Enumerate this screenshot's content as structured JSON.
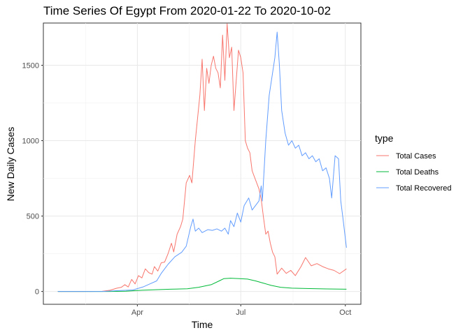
{
  "chart_data": {
    "type": "line",
    "title": "Time Series Of Egypt From 2020-01-22 To 2020-10-02",
    "xlabel": "Time",
    "ylabel": "New Daily Cases",
    "x_range": [
      "2020-01-22",
      "2020-10-02"
    ],
    "ylim": [
      -85,
      1780
    ],
    "x_ticks": [
      {
        "date": "2020-04-01",
        "label": "Apr"
      },
      {
        "date": "2020-07-01",
        "label": "Jul"
      },
      {
        "date": "2020-10-01",
        "label": "Oct"
      }
    ],
    "y_ticks": [
      0,
      500,
      1000,
      1500
    ],
    "grid": true,
    "legend": {
      "title": "type",
      "position": "right"
    },
    "series": [
      {
        "name": "Total Cases",
        "color": "#F8766D",
        "points": [
          [
            "2020-01-22",
            0
          ],
          [
            "2020-02-13",
            0
          ],
          [
            "2020-03-01",
            1
          ],
          [
            "2020-03-08",
            8
          ],
          [
            "2020-03-14",
            22
          ],
          [
            "2020-03-18",
            28
          ],
          [
            "2020-03-21",
            45
          ],
          [
            "2020-03-24",
            30
          ],
          [
            "2020-03-27",
            80
          ],
          [
            "2020-03-30",
            50
          ],
          [
            "2020-04-02",
            105
          ],
          [
            "2020-04-05",
            90
          ],
          [
            "2020-04-08",
            150
          ],
          [
            "2020-04-11",
            125
          ],
          [
            "2020-04-14",
            115
          ],
          [
            "2020-04-16",
            165
          ],
          [
            "2020-04-19",
            135
          ],
          [
            "2020-04-22",
            190
          ],
          [
            "2020-04-25",
            195
          ],
          [
            "2020-04-28",
            250
          ],
          [
            "2020-05-01",
            320
          ],
          [
            "2020-05-03",
            262
          ],
          [
            "2020-05-06",
            380
          ],
          [
            "2020-05-09",
            430
          ],
          [
            "2020-05-11",
            480
          ],
          [
            "2020-05-14",
            720
          ],
          [
            "2020-05-17",
            770
          ],
          [
            "2020-05-19",
            720
          ],
          [
            "2020-05-22",
            1000
          ],
          [
            "2020-05-24",
            1150
          ],
          [
            "2020-05-26",
            1300
          ],
          [
            "2020-05-28",
            1540
          ],
          [
            "2020-05-30",
            1200
          ],
          [
            "2020-06-01",
            1480
          ],
          [
            "2020-06-03",
            1380
          ],
          [
            "2020-06-05",
            1500
          ],
          [
            "2020-06-07",
            1560
          ],
          [
            "2020-06-09",
            1480
          ],
          [
            "2020-06-11",
            1450
          ],
          [
            "2020-06-13",
            1350
          ],
          [
            "2020-06-15",
            1700
          ],
          [
            "2020-06-17",
            1400
          ],
          [
            "2020-06-19",
            1775
          ],
          [
            "2020-06-21",
            1550
          ],
          [
            "2020-06-23",
            1620
          ],
          [
            "2020-06-25",
            1200
          ],
          [
            "2020-06-27",
            1400
          ],
          [
            "2020-06-29",
            1600
          ],
          [
            "2020-07-01",
            1550
          ],
          [
            "2020-07-03",
            1450
          ],
          [
            "2020-07-05",
            1000
          ],
          [
            "2020-07-07",
            950
          ],
          [
            "2020-07-09",
            920
          ],
          [
            "2020-07-11",
            800
          ],
          [
            "2020-07-13",
            760
          ],
          [
            "2020-07-15",
            720
          ],
          [
            "2020-07-17",
            680
          ],
          [
            "2020-07-19",
            610
          ],
          [
            "2020-07-21",
            490
          ],
          [
            "2020-07-23",
            380
          ],
          [
            "2020-07-25",
            400
          ],
          [
            "2020-07-27",
            320
          ],
          [
            "2020-07-29",
            260
          ],
          [
            "2020-07-31",
            230
          ],
          [
            "2020-08-02",
            115
          ],
          [
            "2020-08-06",
            155
          ],
          [
            "2020-08-10",
            120
          ],
          [
            "2020-08-14",
            140
          ],
          [
            "2020-08-18",
            105
          ],
          [
            "2020-08-23",
            165
          ],
          [
            "2020-08-27",
            225
          ],
          [
            "2020-09-01",
            170
          ],
          [
            "2020-09-06",
            185
          ],
          [
            "2020-09-11",
            165
          ],
          [
            "2020-09-16",
            150
          ],
          [
            "2020-09-21",
            140
          ],
          [
            "2020-09-26",
            118
          ],
          [
            "2020-10-02",
            150
          ]
        ]
      },
      {
        "name": "Total Deaths",
        "color": "#00BA38",
        "points": [
          [
            "2020-01-22",
            0
          ],
          [
            "2020-03-08",
            0
          ],
          [
            "2020-03-22",
            2
          ],
          [
            "2020-04-05",
            8
          ],
          [
            "2020-04-19",
            12
          ],
          [
            "2020-04-30",
            15
          ],
          [
            "2020-05-15",
            18
          ],
          [
            "2020-05-25",
            28
          ],
          [
            "2020-06-05",
            45
          ],
          [
            "2020-06-12",
            70
          ],
          [
            "2020-06-16",
            85
          ],
          [
            "2020-06-22",
            88
          ],
          [
            "2020-06-30",
            85
          ],
          [
            "2020-07-07",
            82
          ],
          [
            "2020-07-14",
            70
          ],
          [
            "2020-07-21",
            55
          ],
          [
            "2020-07-28",
            40
          ],
          [
            "2020-08-05",
            28
          ],
          [
            "2020-08-15",
            22
          ],
          [
            "2020-08-31",
            19
          ],
          [
            "2020-09-15",
            17
          ],
          [
            "2020-10-02",
            15
          ]
        ]
      },
      {
        "name": "Total Recovered",
        "color": "#619CFF",
        "points": [
          [
            "2020-01-22",
            0
          ],
          [
            "2020-03-01",
            0
          ],
          [
            "2020-03-14",
            5
          ],
          [
            "2020-03-28",
            10
          ],
          [
            "2020-04-06",
            30
          ],
          [
            "2020-04-12",
            50
          ],
          [
            "2020-04-18",
            70
          ],
          [
            "2020-04-22",
            120
          ],
          [
            "2020-04-28",
            180
          ],
          [
            "2020-05-04",
            230
          ],
          [
            "2020-05-10",
            260
          ],
          [
            "2020-05-14",
            300
          ],
          [
            "2020-05-18",
            430
          ],
          [
            "2020-05-20",
            480
          ],
          [
            "2020-05-22",
            400
          ],
          [
            "2020-05-25",
            420
          ],
          [
            "2020-05-28",
            390
          ],
          [
            "2020-06-02",
            410
          ],
          [
            "2020-06-06",
            405
          ],
          [
            "2020-06-10",
            415
          ],
          [
            "2020-06-14",
            400
          ],
          [
            "2020-06-17",
            420
          ],
          [
            "2020-06-20",
            380
          ],
          [
            "2020-06-22",
            470
          ],
          [
            "2020-06-25",
            430
          ],
          [
            "2020-06-28",
            520
          ],
          [
            "2020-07-01",
            460
          ],
          [
            "2020-07-04",
            570
          ],
          [
            "2020-07-08",
            620
          ],
          [
            "2020-07-11",
            540
          ],
          [
            "2020-07-14",
            570
          ],
          [
            "2020-07-17",
            600
          ],
          [
            "2020-07-19",
            700
          ],
          [
            "2020-07-20",
            600
          ],
          [
            "2020-07-23",
            1000
          ],
          [
            "2020-07-26",
            1300
          ],
          [
            "2020-07-29",
            1450
          ],
          [
            "2020-07-31",
            1550
          ],
          [
            "2020-08-02",
            1720
          ],
          [
            "2020-08-04",
            1500
          ],
          [
            "2020-08-06",
            1200
          ],
          [
            "2020-08-09",
            1050
          ],
          [
            "2020-08-12",
            970
          ],
          [
            "2020-08-15",
            1000
          ],
          [
            "2020-08-18",
            950
          ],
          [
            "2020-08-21",
            970
          ],
          [
            "2020-08-24",
            900
          ],
          [
            "2020-08-27",
            920
          ],
          [
            "2020-08-30",
            880
          ],
          [
            "2020-09-02",
            900
          ],
          [
            "2020-09-05",
            860
          ],
          [
            "2020-09-08",
            880
          ],
          [
            "2020-09-11",
            800
          ],
          [
            "2020-09-14",
            820
          ],
          [
            "2020-09-17",
            750
          ],
          [
            "2020-09-19",
            620
          ],
          [
            "2020-09-22",
            900
          ],
          [
            "2020-09-25",
            880
          ],
          [
            "2020-09-27",
            600
          ],
          [
            "2020-09-29",
            480
          ],
          [
            "2020-10-02",
            290
          ]
        ]
      }
    ]
  }
}
